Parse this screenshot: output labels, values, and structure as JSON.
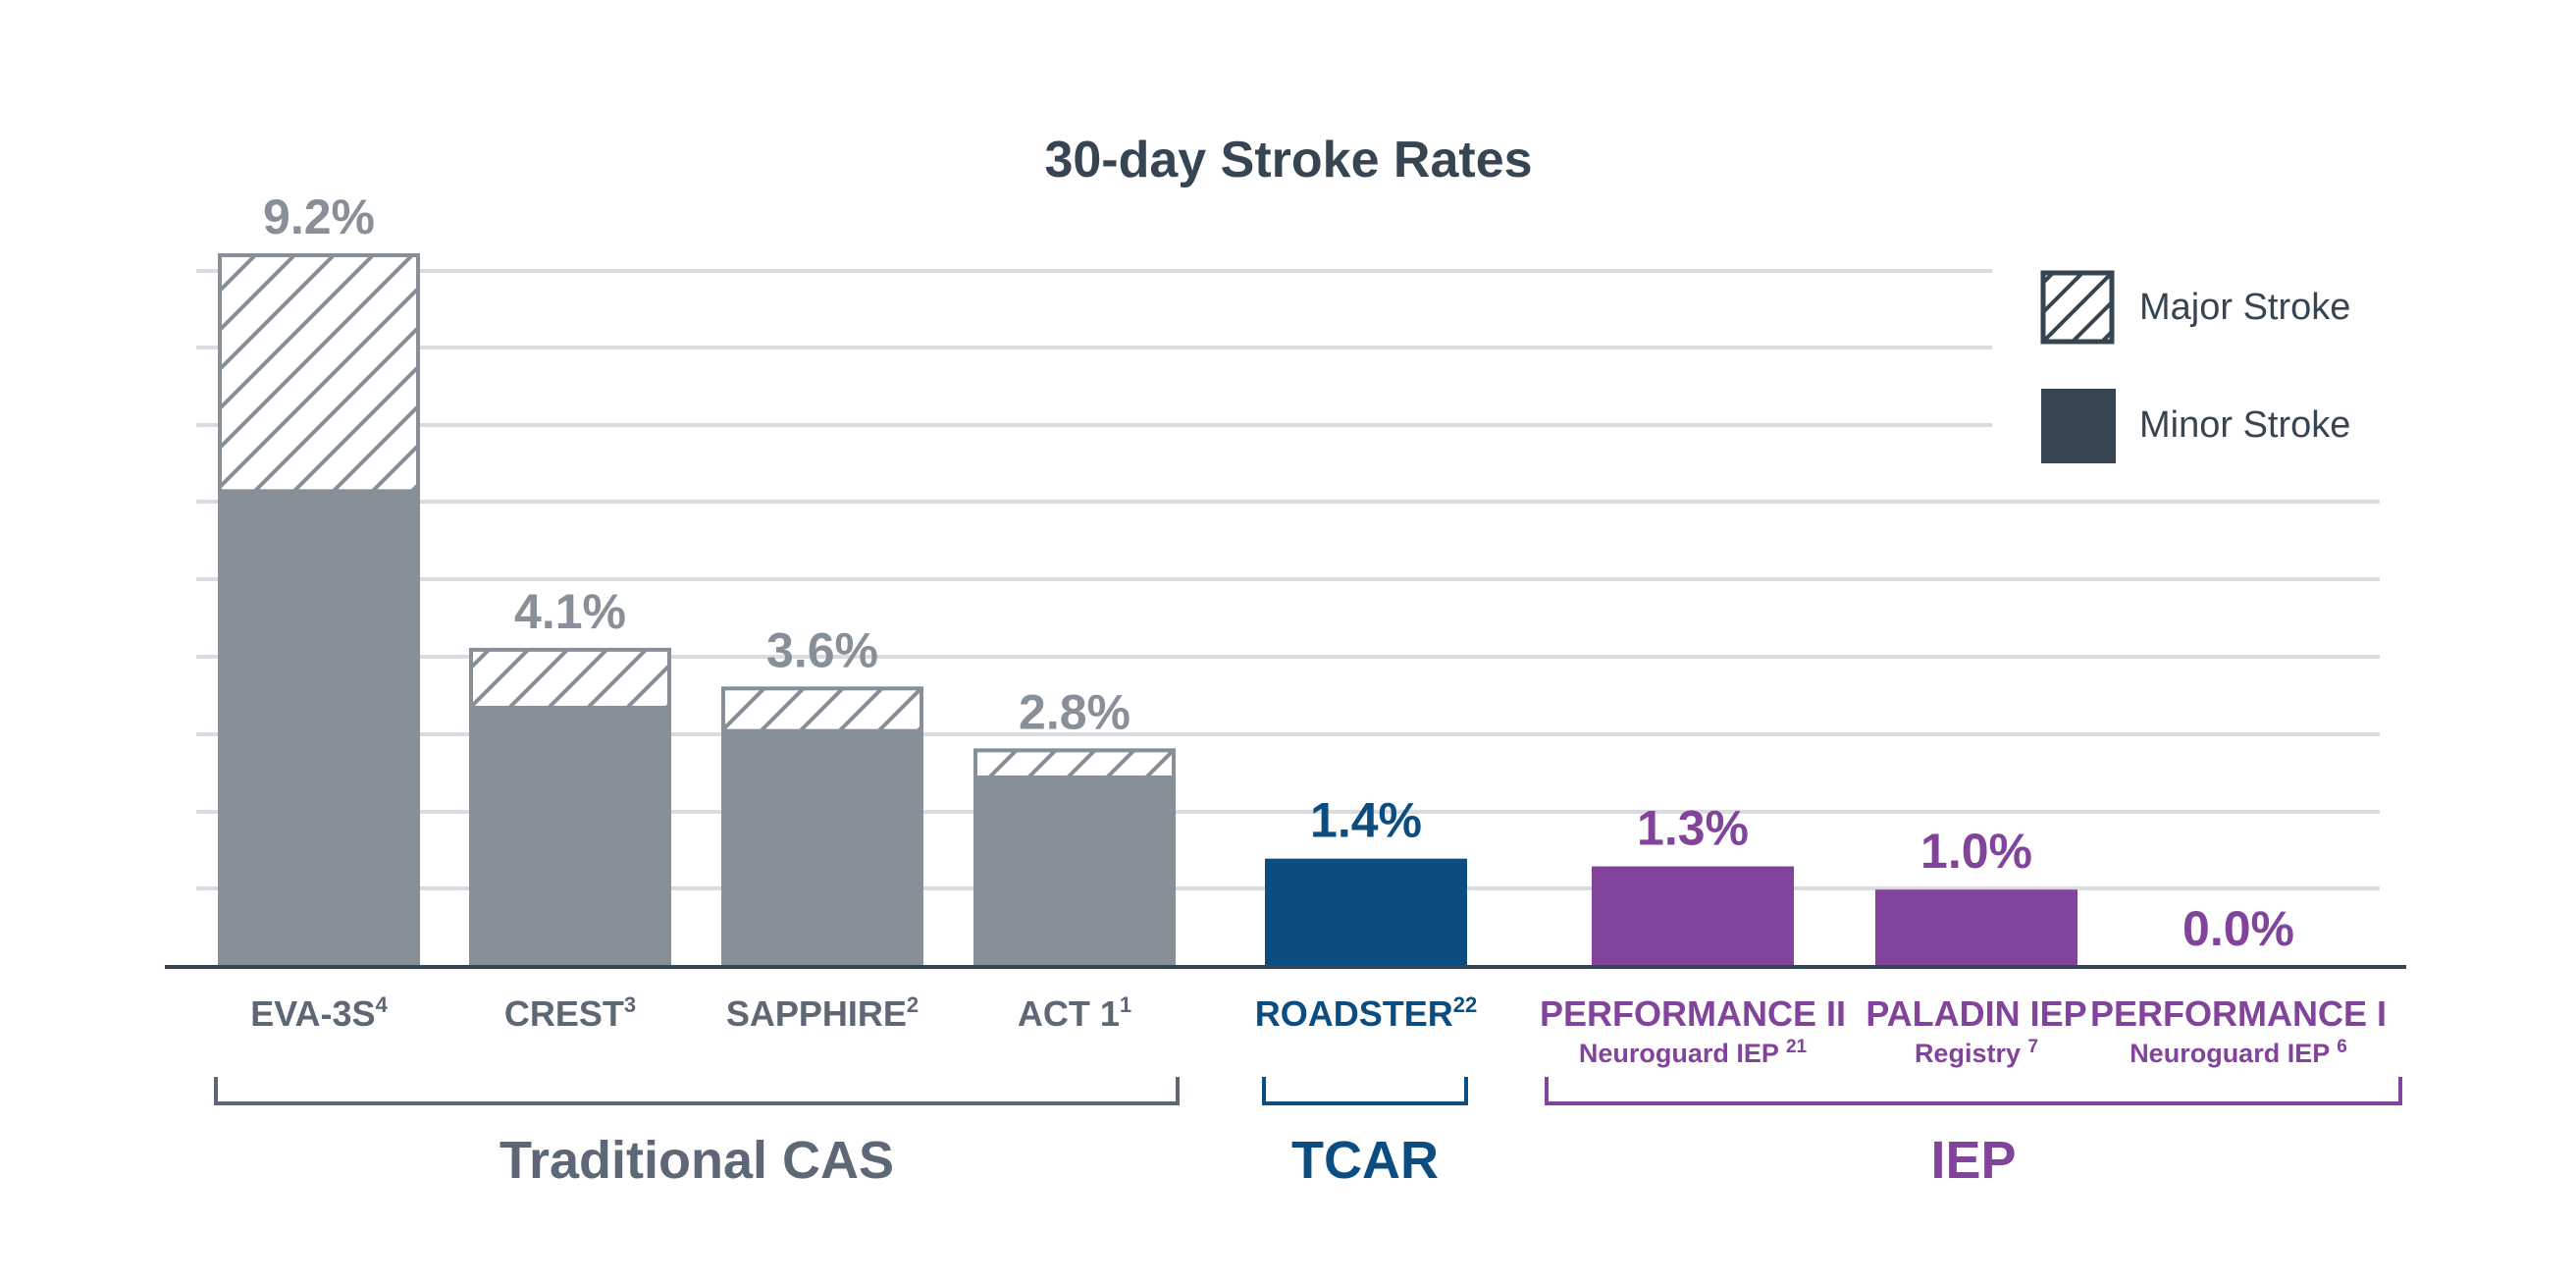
{
  "chart_data": {
    "type": "bar",
    "title": "30-day Stroke Rates",
    "xlabel": "",
    "ylabel": "",
    "ylim": [
      0,
      9.2
    ],
    "grid": true,
    "legend_position": "top-right",
    "legend": [
      {
        "key": "major",
        "label": "Major Stroke"
      },
      {
        "key": "minor",
        "label": "Minor Stroke"
      }
    ],
    "categories": [
      {
        "name": "EVA-3S",
        "sup": "4",
        "sub": "",
        "total": 9.2,
        "total_label": "9.2%",
        "minor": 6.15,
        "major": 3.05,
        "group": "cas"
      },
      {
        "name": "CREST",
        "sup": "3",
        "sub": "",
        "total": 4.1,
        "total_label": "4.1%",
        "minor": 3.35,
        "major": 0.75,
        "group": "cas"
      },
      {
        "name": "SAPPHIRE",
        "sup": "2",
        "sub": "",
        "total": 3.6,
        "total_label": "3.6%",
        "minor": 3.05,
        "major": 0.55,
        "group": "cas"
      },
      {
        "name": "ACT 1",
        "sup": "1",
        "sub": "",
        "total": 2.8,
        "total_label": "2.8%",
        "minor": 2.45,
        "major": 0.35,
        "group": "cas"
      },
      {
        "name": "ROADSTER",
        "sup": "22",
        "sub": "",
        "total": 1.4,
        "total_label": "1.4%",
        "minor": 1.4,
        "major": 0,
        "group": "tcar"
      },
      {
        "name": "PERFORMANCE II",
        "sup": "",
        "sub": "Neuroguard IEP",
        "sub_sup": "21",
        "total": 1.3,
        "total_label": "1.3%",
        "minor": 1.3,
        "major": 0,
        "group": "iep"
      },
      {
        "name": "PALADIN IEP",
        "sup": "",
        "sub": "Registry",
        "sub_sup": "7",
        "total": 1.0,
        "total_label": "1.0%",
        "minor": 1.0,
        "major": 0,
        "group": "iep"
      },
      {
        "name": "PERFORMANCE I",
        "sup": "",
        "sub": "Neuroguard IEP",
        "sub_sup": "6",
        "total": 0.0,
        "total_label": "0.0%",
        "minor": 0,
        "major": 0,
        "group": "iep"
      }
    ],
    "groups": [
      {
        "key": "cas",
        "label": "Traditional CAS",
        "color": "#5d6775"
      },
      {
        "key": "tcar",
        "label": "TCAR",
        "color": "#0b4d80"
      },
      {
        "key": "iep",
        "label": "IEP",
        "color": "#82449b"
      }
    ],
    "colors": {
      "cas_bar": "#878f99",
      "cas_label": "#878f99",
      "cas_axis_label": "#5d6775",
      "tcar": "#0b4d80",
      "iep": "#82449b",
      "legend_dark": "#374553",
      "title": "#374553",
      "grid": "#d9dbe0",
      "axis": "#374553"
    }
  }
}
